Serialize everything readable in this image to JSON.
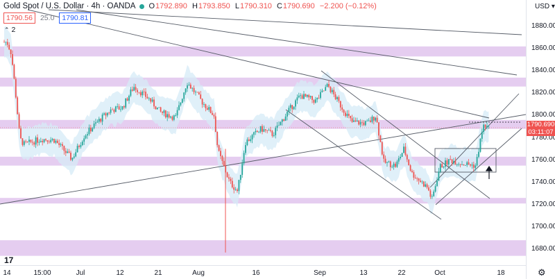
{
  "legend": {
    "symbol": "Gold Spot / U.S. Dollar · 4h · OANDA",
    "open_label": "O",
    "open": "1792.890",
    "high_label": "H",
    "high": "1793.850",
    "low_label": "L",
    "low": "1790.310",
    "close_label": "C",
    "close": "1790.690",
    "change": "−2.200 (−0.12%)"
  },
  "order": {
    "sell": "1790.56",
    "spread": "25.0",
    "buy": "1790.81"
  },
  "indicators_count": "2",
  "price_axis": {
    "currency": "USD",
    "ticks": [
      "1880.000",
      "1860.000",
      "1840.000",
      "1820.000",
      "1800.000",
      "1780.000",
      "1760.000",
      "1740.000",
      "1720.000",
      "1700.000",
      "1680.000"
    ],
    "last_price": "1790.690",
    "countdown": "03:11:07"
  },
  "time_axis": {
    "ticks": [
      "14",
      "15:00",
      "Jul",
      "12",
      "21",
      "Aug",
      "16",
      "Sep",
      "13",
      "22",
      "Oct",
      "18"
    ]
  },
  "logo": "17",
  "colors": {
    "up": "#26a69a",
    "down": "#ef5350",
    "zone": "#dfc1ec",
    "band": "#d6ebf7",
    "badge": "#ef5350"
  },
  "chart_data": {
    "type": "candlestick",
    "title": "Gold Spot / U.S. Dollar",
    "interval": "4h",
    "ylim": [
      1670,
      1890
    ],
    "x": [
      "14",
      "15:00",
      "Jul",
      "12",
      "21",
      "Aug",
      "16",
      "Sep",
      "13",
      "22",
      "Oct",
      "18"
    ],
    "close_path": [
      [
        "Jun 14",
        1866
      ],
      [
        "Jun 15",
        1856
      ],
      [
        "Jun 16",
        1820
      ],
      [
        "Jun 17",
        1779
      ],
      [
        "Jun 18",
        1774
      ],
      [
        "Jun 22",
        1779
      ],
      [
        "Jun 25",
        1778
      ],
      [
        "Jun 29",
        1761
      ],
      [
        "Jul 2",
        1782
      ],
      [
        "Jul 6",
        1796
      ],
      [
        "Jul 9",
        1805
      ],
      [
        "Jul 12",
        1807
      ],
      [
        "Jul 15",
        1826
      ],
      [
        "Jul 19",
        1815
      ],
      [
        "Jul 22",
        1803
      ],
      [
        "Jul 26",
        1798
      ],
      [
        "Jul 29",
        1830
      ],
      [
        "Aug 2",
        1812
      ],
      [
        "Aug 5",
        1800
      ],
      [
        "Aug 6",
        1768
      ],
      [
        "Aug 9",
        1740
      ],
      [
        "Aug 11",
        1732
      ],
      [
        "Aug 13",
        1776
      ],
      [
        "Aug 17",
        1788
      ],
      [
        "Aug 20",
        1783
      ],
      [
        "Aug 24",
        1804
      ],
      [
        "Aug 27",
        1818
      ],
      [
        "Aug 31",
        1813
      ],
      [
        "Sep 3",
        1827
      ],
      [
        "Sep 6",
        1810
      ],
      [
        "Sep 9",
        1794
      ],
      [
        "Sep 13",
        1793
      ],
      [
        "Sep 15",
        1800
      ],
      [
        "Sep 17",
        1758
      ],
      [
        "Sep 20",
        1755
      ],
      [
        "Sep 22",
        1770
      ],
      [
        "Sep 24",
        1748
      ],
      [
        "Sep 28",
        1735
      ],
      [
        "Sep 29",
        1724
      ],
      [
        "Oct 1",
        1754
      ],
      [
        "Oct 4",
        1760
      ],
      [
        "Oct 7",
        1757
      ],
      [
        "Oct 11",
        1755
      ],
      [
        "Oct 13",
        1790
      ],
      [
        "Oct 14",
        1791
      ]
    ],
    "horizontal_zones": [
      [
        1862,
        1853
      ],
      [
        1834,
        1826
      ],
      [
        1796,
        1788
      ],
      [
        1763,
        1755
      ],
      [
        1726,
        1721
      ],
      [
        1688,
        1674
      ]
    ],
    "last_close": 1790.69
  }
}
